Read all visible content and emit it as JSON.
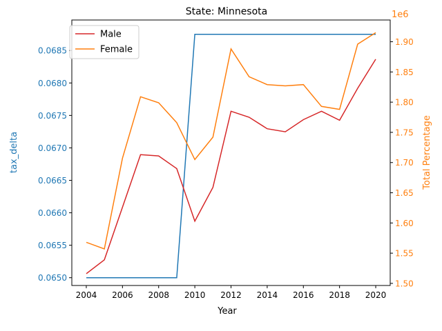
{
  "chart_data": {
    "type": "line",
    "title": "State: Minnesota",
    "xlabel": "Year",
    "ylabel_left": "tax_delta",
    "ylabel_right": "Total Percentage",
    "right_axis_offset_label": "1e6",
    "x": [
      2004,
      2005,
      2006,
      2007,
      2008,
      2009,
      2010,
      2011,
      2012,
      2013,
      2014,
      2015,
      2016,
      2017,
      2018,
      2019,
      2020
    ],
    "x_ticks": [
      "2004",
      "2006",
      "2008",
      "2010",
      "2012",
      "2014",
      "2016",
      "2018",
      "2020"
    ],
    "xlim": [
      2003.2,
      2020.8
    ],
    "left_axis": {
      "ylim": [
        0.06488,
        0.06897
      ],
      "ticks": [
        "0.0650",
        "0.0655",
        "0.0660",
        "0.0665",
        "0.0670",
        "0.0675",
        "0.0680",
        "0.0685"
      ],
      "tick_values": [
        0.065,
        0.0655,
        0.066,
        0.0665,
        0.067,
        0.0675,
        0.068,
        0.0685
      ],
      "color": "#1f77b4",
      "series": [
        {
          "color": "#1f77b4",
          "values": [
            0.065,
            0.065,
            0.065,
            0.065,
            0.065,
            0.065,
            0.06875,
            0.06875,
            0.06875,
            0.06875,
            0.06875,
            0.06875,
            0.06875,
            0.06875,
            0.06875,
            0.06875,
            0.06875
          ]
        }
      ]
    },
    "right_axis": {
      "ylim": [
        1.4965,
        1.936
      ],
      "ticks": [
        "1.50",
        "1.55",
        "1.60",
        "1.65",
        "1.70",
        "1.75",
        "1.80",
        "1.85",
        "1.90"
      ],
      "tick_values": [
        1.5,
        1.55,
        1.6,
        1.65,
        1.7,
        1.75,
        1.8,
        1.85,
        1.9
      ],
      "color": "#ff7f0e",
      "series": [
        {
          "name": "Male",
          "color": "#d62728",
          "values": [
            1.516,
            1.539,
            1.626,
            1.713,
            1.711,
            1.69,
            1.603,
            1.659,
            1.785,
            1.775,
            1.756,
            1.751,
            1.771,
            1.785,
            1.77,
            1.823,
            1.871
          ]
        },
        {
          "name": "Female",
          "color": "#ff7f0e",
          "values": [
            1.568,
            1.557,
            1.707,
            1.809,
            1.799,
            1.766,
            1.705,
            1.742,
            1.888,
            1.842,
            1.829,
            1.827,
            1.829,
            1.793,
            1.788,
            1.896,
            1.915
          ]
        }
      ]
    },
    "legend": {
      "placement": "top-left",
      "entries": [
        "Male",
        "Female"
      ]
    },
    "grid": false
  }
}
